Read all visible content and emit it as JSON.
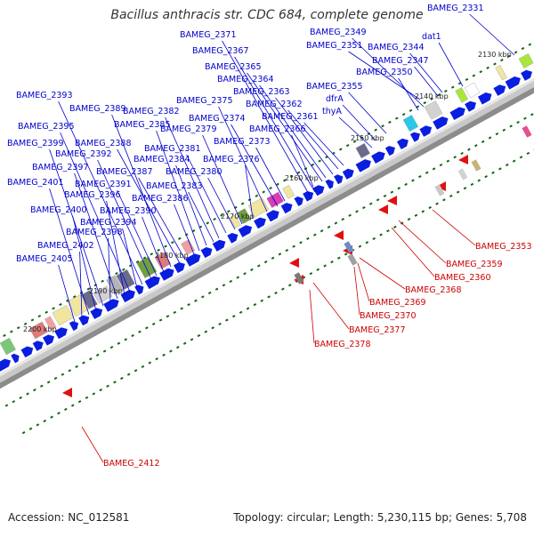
{
  "title": "Bacillus anthracis str. CDC 684, complete genome",
  "accession_text": "Accession: NC_012581",
  "summary_text": "Topology: circular; Length: 5,230,115 bp; Genes: 5,708",
  "colors": {
    "forward_label": "#0000cc",
    "reverse_label": "#cc0000",
    "forward_arrow": "#0a1ee0",
    "reverse_arrow": "#e01010",
    "backbone": "#8c8c8c",
    "tick": "#116611"
  },
  "scale_ticks": [
    "2130 kbp",
    "2140 kbp",
    "2150 kbp",
    "2160 kbp",
    "2170 kbp",
    "2180 kbp",
    "2190 kbp",
    "2200 kbp"
  ],
  "forward_gene_labels": [
    "BAMEG_2331",
    "dat1",
    "BAMEG_2344",
    "BAMEG_2347",
    "BAMEG_2349",
    "BAMEG_2350",
    "BAMEG_2351",
    "BAMEG_2355",
    "dfrA",
    "thyA",
    "BAMEG_2361",
    "BAMEG_2362",
    "BAMEG_2363",
    "BAMEG_2364",
    "BAMEG_2365",
    "BAMEG_2366",
    "BAMEG_2367",
    "BAMEG_2371",
    "BAMEG_2373",
    "BAMEG_2374",
    "BAMEG_2375",
    "BAMEG_2376",
    "BAMEG_2379",
    "BAMEG_2380",
    "BAMEG_2381",
    "BAMEG_2382",
    "BAMEG_2383",
    "BAMEG_2384",
    "BAMEG_2385",
    "BAMEG_2386",
    "BAMEG_2387",
    "BAMEG_2388",
    "BAMEG_2389",
    "BAMEG_2390",
    "BAMEG_2391",
    "BAMEG_2392",
    "BAMEG_2393",
    "BAMEG_2394",
    "BAMEG_2395",
    "BAMEG_2396",
    "BAMEG_2397",
    "BAMEG_2398",
    "BAMEG_2399",
    "BAMEG_2400",
    "BAMEG_2401",
    "BAMEG_2402",
    "BAMEG_2405"
  ],
  "reverse_gene_labels": [
    "BAMEG_2353",
    "BAMEG_2359",
    "BAMEG_2360",
    "BAMEG_2368",
    "BAMEG_2369",
    "BAMEG_2370",
    "BAMEG_2377",
    "BAMEG_2378",
    "BAMEG_2412"
  ]
}
